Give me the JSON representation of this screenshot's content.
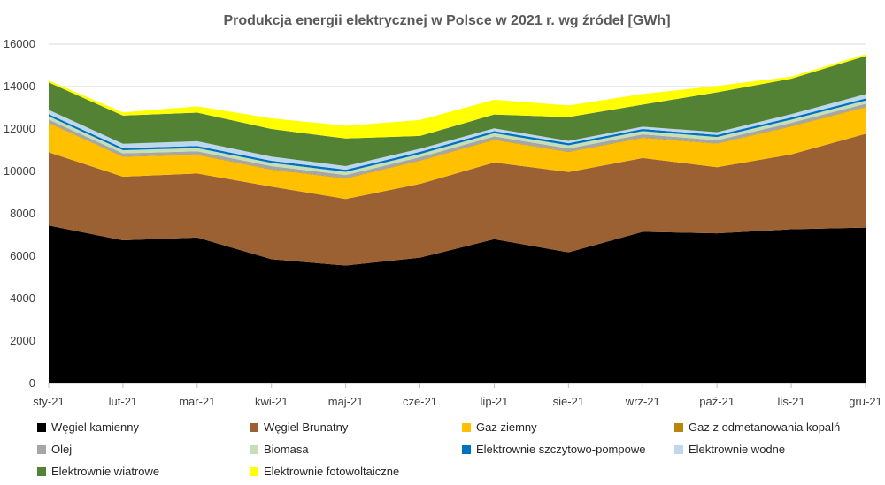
{
  "chart_data": {
    "type": "area",
    "stacked": true,
    "title": "Produkcja energii elektrycznej w Polsce w 2021 r. wg źródeł [GWh]",
    "xlabel": "",
    "ylabel": "",
    "categories": [
      "sty-21",
      "lut-21",
      "mar-21",
      "kwi-21",
      "maj-21",
      "cze-21",
      "lip-21",
      "sie-21",
      "wrz-21",
      "paź-21",
      "lis-21",
      "gru-21"
    ],
    "ylim": [
      0,
      16000
    ],
    "yticks": [
      0,
      2000,
      4000,
      6000,
      8000,
      10000,
      12000,
      14000,
      16000
    ],
    "grid": true,
    "legend_position": "bottom",
    "series": [
      {
        "name": "Węgiel kamienny",
        "color": "#000000",
        "values": [
          7450,
          6750,
          6880,
          5860,
          5560,
          5930,
          6800,
          6180,
          7150,
          7080,
          7270,
          7350
        ]
      },
      {
        "name": "Węgiel Brunatny",
        "color": "#9C6132",
        "values": [
          3450,
          3000,
          3020,
          3420,
          3140,
          3480,
          3620,
          3790,
          3480,
          3120,
          3530,
          4420
        ]
      },
      {
        "name": "Gaz ziemny",
        "color": "#FFC000",
        "values": [
          1380,
          930,
          880,
          800,
          960,
          1090,
          1060,
          940,
          950,
          1100,
          1320,
          1250
        ]
      },
      {
        "name": "Gaz z odmetanowania kopalń",
        "color": "#B8860B",
        "values": [
          20,
          20,
          20,
          20,
          20,
          20,
          20,
          20,
          20,
          20,
          20,
          20
        ]
      },
      {
        "name": "Olej",
        "color": "#A6A6A6",
        "values": [
          150,
          150,
          150,
          150,
          150,
          150,
          150,
          150,
          150,
          150,
          150,
          150
        ]
      },
      {
        "name": "Biomasa",
        "color": "#C5E0B4",
        "values": [
          150,
          150,
          150,
          150,
          150,
          150,
          150,
          150,
          150,
          150,
          150,
          150
        ]
      },
      {
        "name": "Elektrownie szczytowo-pompowe",
        "color": "#0070C0",
        "values": [
          100,
          100,
          100,
          100,
          100,
          100,
          100,
          100,
          100,
          100,
          100,
          100
        ]
      },
      {
        "name": "Elektrownie wodne",
        "color": "#BDD7EE",
        "values": [
          200,
          200,
          220,
          200,
          170,
          150,
          130,
          110,
          110,
          130,
          160,
          200
        ]
      },
      {
        "name": "Elektrownie wiatrowe",
        "color": "#548235",
        "values": [
          1300,
          1330,
          1350,
          1300,
          1300,
          600,
          650,
          1120,
          1040,
          1880,
          1670,
          1800
        ]
      },
      {
        "name": "Elektrownie fotowoltaiczne",
        "color": "#FFFF00",
        "values": [
          90,
          150,
          300,
          500,
          600,
          750,
          700,
          550,
          500,
          300,
          100,
          80
        ]
      }
    ]
  }
}
